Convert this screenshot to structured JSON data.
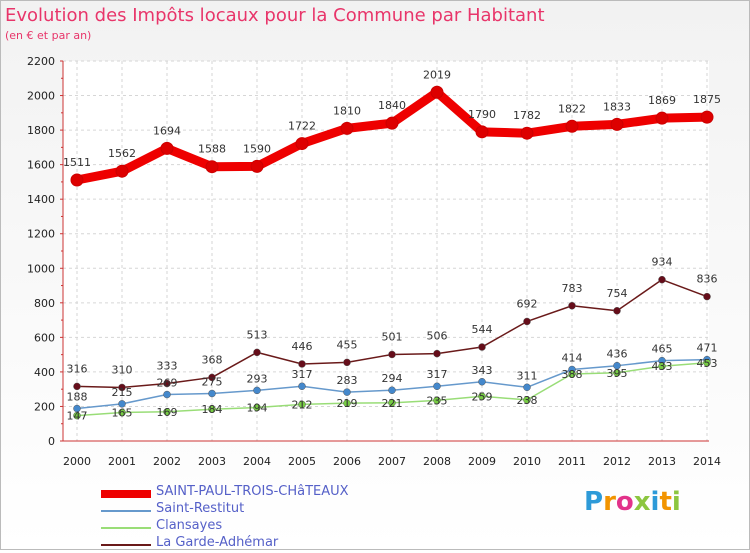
{
  "title": "Evolution des Impôts locaux pour la Commune par Habitant",
  "subtitle": "(en € et par an)",
  "brand": {
    "letters": [
      {
        "ch": "P",
        "color": "#2d9ad8"
      },
      {
        "ch": "r",
        "color": "#f29400"
      },
      {
        "ch": "o",
        "color": "#e2328a"
      },
      {
        "ch": "x",
        "color": "#8cc63f"
      },
      {
        "ch": "i",
        "color": "#2d9ad8"
      },
      {
        "ch": "t",
        "color": "#f29400"
      },
      {
        "ch": "i",
        "color": "#8cc63f"
      }
    ]
  },
  "chart_data": {
    "type": "line",
    "title": "Evolution des Impôts locaux pour la Commune par Habitant",
    "ylabel": "(en € et par an)",
    "xlabel": "",
    "ylim": [
      0,
      2200
    ],
    "yticks": [
      "0",
      "200",
      "400",
      "600",
      "800",
      "1000",
      "1200",
      "1400",
      "1600",
      "1800",
      "2000",
      "2200"
    ],
    "categories": [
      "2000",
      "2001",
      "2002",
      "2003",
      "2004",
      "2005",
      "2006",
      "2007",
      "2008",
      "2009",
      "2010",
      "2011",
      "2012",
      "2013",
      "2014"
    ],
    "grid": true,
    "legend": "bottom-left",
    "series": [
      {
        "name": "SAINT-PAUL-TROIS-CHâTEAUX",
        "color": "#ee0000",
        "marker": "#dd0000",
        "values": [
          1511,
          1562,
          1694,
          1588,
          1590,
          1722,
          1810,
          1840,
          2019,
          1790,
          1782,
          1822,
          1833,
          1869,
          1875
        ]
      },
      {
        "name": "Saint-Restitut",
        "color": "#6699cc",
        "marker": "#4488cc",
        "values": [
          188,
          215,
          269,
          275,
          293,
          317,
          283,
          294,
          317,
          343,
          311,
          414,
          436,
          465,
          471
        ]
      },
      {
        "name": "Clansayes",
        "color": "#99dd77",
        "marker": "#77cc44",
        "values": [
          147,
          165,
          169,
          184,
          194,
          212,
          219,
          221,
          235,
          259,
          238,
          388,
          395,
          433,
          453
        ]
      },
      {
        "name": "La Garde-Adhémar",
        "color": "#6a1a1a",
        "marker": "#660d1a",
        "values": [
          316,
          310,
          333,
          368,
          513,
          446,
          455,
          501,
          506,
          544,
          692,
          783,
          754,
          934,
          836
        ]
      }
    ]
  }
}
